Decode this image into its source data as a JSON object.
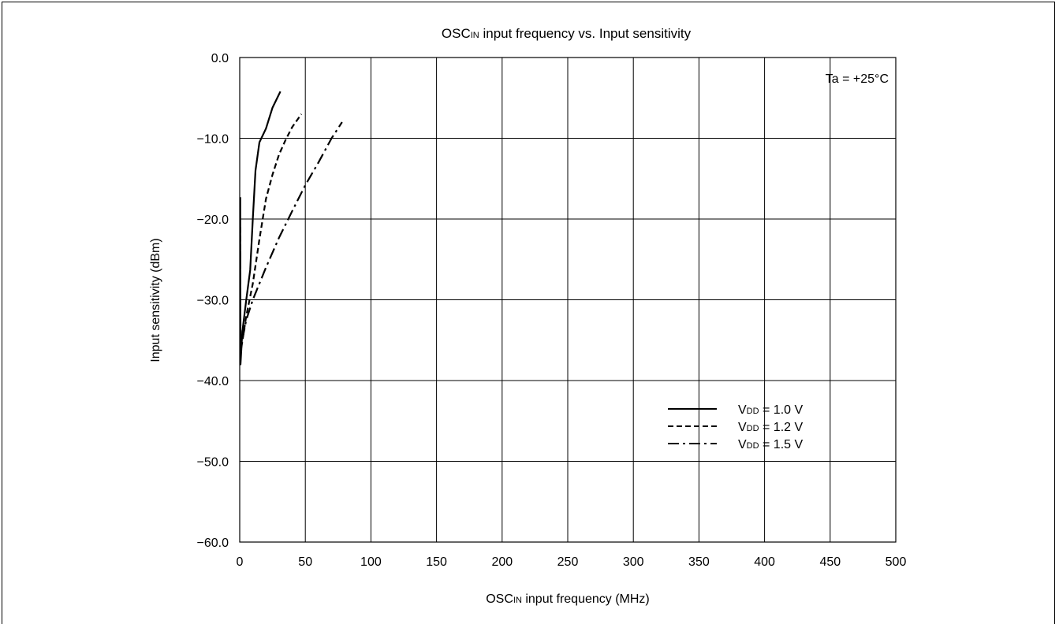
{
  "chart_data": {
    "type": "line",
    "title": {
      "main": "OSC",
      "sub": "IN",
      "rest": " input frequency vs. Input sensitivity"
    },
    "xlabel": {
      "main": "OSC",
      "sub": "IN",
      "rest": " input frequency (MHz)"
    },
    "ylabel": "Input sensitivity (dBm)",
    "annotation": "Ta = +25°C",
    "xlim": [
      0,
      500
    ],
    "ylim": [
      -60,
      0
    ],
    "x_ticks": [
      0,
      50,
      100,
      150,
      200,
      250,
      300,
      350,
      400,
      450,
      500
    ],
    "x_tick_labels": [
      "0",
      "50",
      "100",
      "150",
      "200",
      "250",
      "300",
      "350",
      "400",
      "450",
      "500"
    ],
    "y_ticks": [
      0,
      -10,
      -20,
      -30,
      -40,
      -50,
      -60
    ],
    "y_tick_labels": [
      "0.0",
      "−10.0",
      "−20.0",
      "−30.0",
      "−40.0",
      "−50.0",
      "−60.0"
    ],
    "grid": true,
    "legend_position": "lower-right",
    "series": [
      {
        "legend": {
          "main": "V",
          "sub": "DD",
          "rest": " = 1.0 V"
        },
        "style": "solid",
        "points": [
          [
            0.4,
            -17.3
          ],
          [
            0.4,
            -25.0
          ],
          [
            0.6,
            -38.0
          ],
          [
            2,
            -34.0
          ],
          [
            5,
            -30.0
          ],
          [
            8,
            -26.3
          ],
          [
            10,
            -20.0
          ],
          [
            12,
            -14.0
          ],
          [
            15,
            -10.5
          ],
          [
            20,
            -8.8
          ],
          [
            25,
            -6.2
          ],
          [
            31,
            -4.2
          ]
        ]
      },
      {
        "legend": {
          "main": "V",
          "sub": "DD",
          "rest": " = 1.2 V"
        },
        "style": "dashed",
        "points": [
          [
            0.4,
            -21.0
          ],
          [
            0.4,
            -30.0
          ],
          [
            0.7,
            -36.5
          ],
          [
            5,
            -32.0
          ],
          [
            10,
            -28.0
          ],
          [
            15,
            -22.5
          ],
          [
            20,
            -17.5
          ],
          [
            25,
            -14.5
          ],
          [
            30,
            -12.0
          ],
          [
            35,
            -10.2
          ],
          [
            40,
            -8.6
          ],
          [
            47,
            -7.0
          ]
        ]
      },
      {
        "legend": {
          "main": "V",
          "sub": "DD",
          "rest": " = 1.5 V"
        },
        "style": "dashdot",
        "points": [
          [
            0.4,
            -24.0
          ],
          [
            0.4,
            -29.0
          ],
          [
            0.7,
            -36.0
          ],
          [
            5,
            -32.5
          ],
          [
            10,
            -30.0
          ],
          [
            20,
            -26.0
          ],
          [
            30,
            -22.3
          ],
          [
            40,
            -19.0
          ],
          [
            50,
            -15.8
          ],
          [
            60,
            -13.0
          ],
          [
            70,
            -10.0
          ],
          [
            78,
            -8.0
          ]
        ]
      }
    ]
  }
}
